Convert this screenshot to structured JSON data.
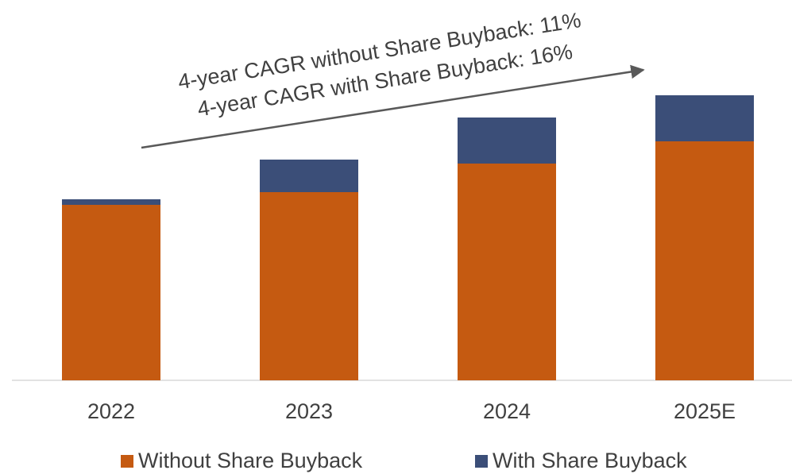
{
  "chart_data": {
    "type": "bar",
    "stacked": true,
    "annotations": [
      "4-year CAGR without Share Buyback: 11%",
      "4-year CAGR with Share Buyback: 16%"
    ],
    "categories": [
      "2022",
      "2023",
      "2024",
      "2025E"
    ],
    "series": [
      {
        "name": "Without Share Buyback",
        "color": "#c55a11",
        "values": [
          221,
          237,
          273,
          301
        ]
      },
      {
        "name": "With Share Buyback",
        "color": "#3b4e78",
        "values": [
          7,
          41,
          58,
          58
        ]
      }
    ],
    "legend": "bottom"
  }
}
